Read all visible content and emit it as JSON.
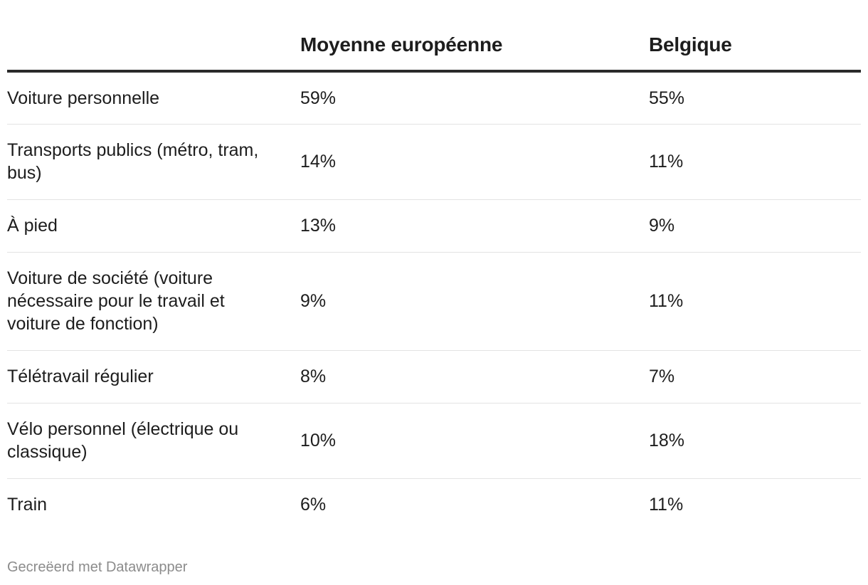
{
  "chart_data": {
    "type": "table",
    "columns": [
      "",
      "Moyenne européenne",
      "Belgique"
    ],
    "rows": [
      {
        "label": "Voiture personnelle",
        "eu": "59%",
        "be": "55%",
        "height": 74
      },
      {
        "label": "Transports publics (métro, tram, bus)",
        "eu": "14%",
        "be": "11%",
        "height": 106
      },
      {
        "label": "À pied",
        "eu": "13%",
        "be": "9%",
        "height": 74
      },
      {
        "label": "Voiture de société (voiture nécessaire pour le travail et voiture de fonction)",
        "eu": "9%",
        "be": "11%",
        "height": 138
      },
      {
        "label": "Télétravail régulier",
        "eu": "8%",
        "be": "7%",
        "height": 74
      },
      {
        "label": "Vélo personnel (électrique ou classique)",
        "eu": "10%",
        "be": "18%",
        "height": 106
      },
      {
        "label": "Train",
        "eu": "6%",
        "be": "11%",
        "height": 74
      }
    ]
  },
  "footer": {
    "credit": "Gecreëerd met Datawrapper"
  }
}
